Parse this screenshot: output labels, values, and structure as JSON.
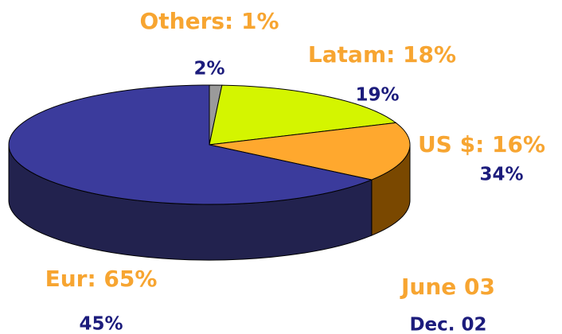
{
  "chart_data": {
    "type": "pie",
    "colors": [
      "#9a9a9a",
      "#d4f500",
      "#ffa82e",
      "#3b3b9c"
    ],
    "side_colors": [
      "#555555",
      "#7f8f00",
      "#7a4800",
      "#22224e"
    ],
    "series": [
      {
        "name": "June 03",
        "color": "#f7a531",
        "values": [
          1,
          18,
          16,
          65
        ],
        "value_labels": [
          "Others: 1%",
          "Latam: 18%",
          "US $: 16%",
          "Eur: 65%"
        ]
      },
      {
        "name": "Dec. 02",
        "color": "#1c1c7c",
        "values": [
          2,
          19,
          34,
          45
        ],
        "value_labels": [
          "2%",
          "19%",
          "34%",
          "45%"
        ]
      }
    ]
  }
}
